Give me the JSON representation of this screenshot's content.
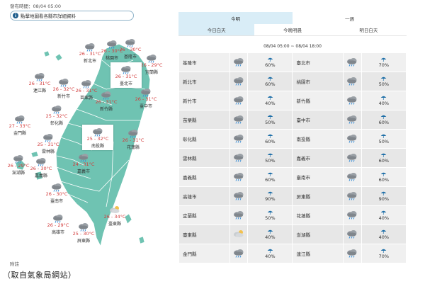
{
  "header": {
    "publish_time": "發布時間：08/04 05:00",
    "notice": "點擊地圖看各縣市詳細資料",
    "notice_icon": "info-icon"
  },
  "map": {
    "cities": [
      {
        "key": "new-taipei",
        "name": "新北市",
        "temp": "26 - 31°C",
        "icon": "cloud-rain-icon"
      },
      {
        "key": "taoyuan",
        "name": "桃園市",
        "temp": "26 - 30°C",
        "icon": "cloud-rain-icon"
      },
      {
        "key": "keelung",
        "name": "基隆市",
        "temp": "26 - 30°C",
        "icon": "cloud-rain-icon"
      },
      {
        "key": "yilan",
        "name": "宜蘭縣",
        "temp": "26 - 29°C",
        "icon": "cloud-rain-icon"
      },
      {
        "key": "taipei",
        "name": "臺北市",
        "temp": "26 - 31°C",
        "icon": "cloud-rain-icon"
      },
      {
        "key": "lienchiang",
        "name": "連江縣",
        "temp": "26 - 31°C",
        "icon": "cloud-rain-icon"
      },
      {
        "key": "hsinchu-city",
        "name": "新竹市",
        "temp": "26 - 32°C",
        "icon": "cloud-rain-icon"
      },
      {
        "key": "miaoli",
        "name": "苗栗縣",
        "temp": "26 - 31°C",
        "icon": "cloud-rain-icon"
      },
      {
        "key": "hsinchu-county",
        "name": "新竹縣",
        "temp": "26 - 31°C",
        "icon": "cloud-rain-icon"
      },
      {
        "key": "taichung",
        "name": "臺中市",
        "temp": "26 - 31°C",
        "icon": "cloud-rain-icon"
      },
      {
        "key": "hualien",
        "name": "花蓮縣",
        "temp": "26 - 31°C",
        "icon": "cloud-rain-icon"
      },
      {
        "key": "changhua",
        "name": "彰化縣",
        "temp": "25 - 32°C",
        "icon": "cloud-rain-icon"
      },
      {
        "key": "kinmen",
        "name": "金門縣",
        "temp": "27 - 33°C",
        "icon": "cloud-rain-icon"
      },
      {
        "key": "nantou",
        "name": "南投縣",
        "temp": "25 - 32°C",
        "icon": "cloud-rain-icon"
      },
      {
        "key": "yunlin",
        "name": "雲林縣",
        "temp": "25 - 31°C",
        "icon": "cloud-rain-icon"
      },
      {
        "key": "penghu",
        "name": "澎湖縣",
        "temp": "26 - 29°C",
        "icon": "cloud-rain-icon"
      },
      {
        "key": "chiayi-county",
        "name": "嘉義縣",
        "temp": "26 - 30°C",
        "icon": "cloud-rain-icon"
      },
      {
        "key": "chiayi-city",
        "name": "嘉義市",
        "temp": "24 - 31°C",
        "icon": "cloud-rain-icon"
      },
      {
        "key": "tainan",
        "name": "臺南市",
        "temp": "26 - 30°C",
        "icon": "cloud-rain-icon"
      },
      {
        "key": "taitung",
        "name": "臺東縣",
        "temp": "26 - 34°C",
        "icon": "cloud-sun-icon"
      },
      {
        "key": "kaohsiung",
        "name": "高雄市",
        "temp": "26 - 29°C",
        "icon": "cloud-rain-icon"
      },
      {
        "key": "pingtung",
        "name": "屏東縣",
        "temp": "25 - 30°C",
        "icon": "cloud-rain-icon"
      }
    ]
  },
  "footnote": "附註",
  "caption": "（取自氣象局網站）",
  "panel": {
    "top_tabs": [
      "今明",
      "一週"
    ],
    "sub_tabs": [
      "今日白天",
      "今晚明晨",
      "明日白天"
    ],
    "period": "08/04 05:00 ~ 08/04 18:00",
    "rows": [
      {
        "left": {
          "name": "基隆市",
          "pop": "60%"
        },
        "right": {
          "name": "臺北市",
          "pop": "70%"
        }
      },
      {
        "left": {
          "name": "新北市",
          "pop": "60%"
        },
        "right": {
          "name": "桃園市",
          "pop": "50%"
        }
      },
      {
        "left": {
          "name": "新竹市",
          "pop": "40%"
        },
        "right": {
          "name": "新竹縣",
          "pop": "40%"
        }
      },
      {
        "left": {
          "name": "苗栗縣",
          "pop": "50%"
        },
        "right": {
          "name": "臺中市",
          "pop": "60%"
        }
      },
      {
        "left": {
          "name": "彰化縣",
          "pop": "60%"
        },
        "right": {
          "name": "南投縣",
          "pop": "50%"
        }
      },
      {
        "left": {
          "name": "雲林縣",
          "pop": "50%"
        },
        "right": {
          "name": "嘉義市",
          "pop": "60%"
        }
      },
      {
        "left": {
          "name": "嘉義縣",
          "pop": "60%"
        },
        "right": {
          "name": "臺南市",
          "pop": "60%"
        }
      },
      {
        "left": {
          "name": "高雄市",
          "pop": "90%"
        },
        "right": {
          "name": "屏東縣",
          "pop": "90%"
        }
      },
      {
        "left": {
          "name": "宜蘭縣",
          "pop": "50%"
        },
        "right": {
          "name": "花蓮縣",
          "pop": "40%"
        }
      },
      {
        "left": {
          "name": "臺東縣",
          "pop": "40%"
        },
        "right": {
          "name": "澎湖縣",
          "pop": "40%"
        }
      },
      {
        "left": {
          "name": "金門縣",
          "pop": "40%"
        },
        "right": {
          "name": "連江縣",
          "pop": "70%"
        }
      }
    ]
  },
  "colors": {
    "map_land": "#6fc3b2",
    "map_border": "#ffffff",
    "temp": "#d23b3b",
    "tab_active": "#d9edf7",
    "umbrella": "#1f6fa8"
  }
}
